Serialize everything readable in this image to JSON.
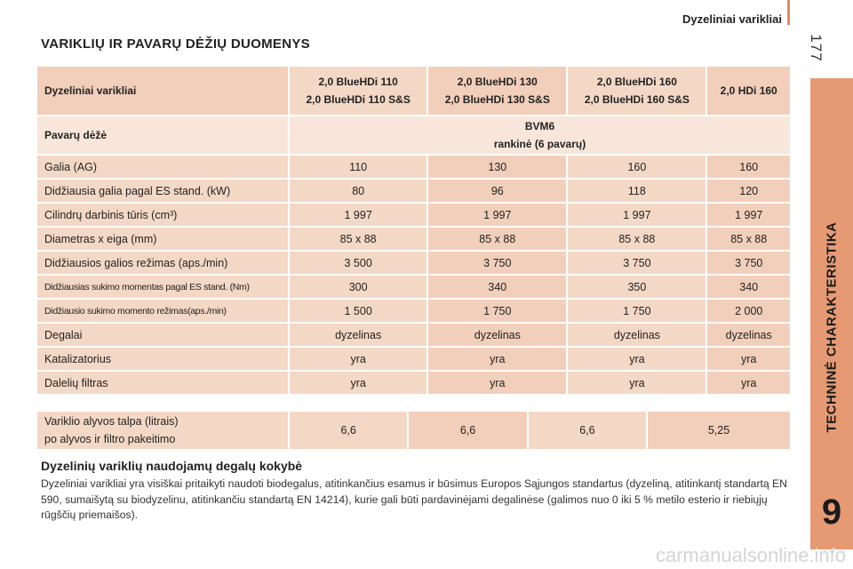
{
  "header": {
    "title": "Dyzeliniai varikliai",
    "page_number": "177"
  },
  "side_tab": {
    "label": "TECHNINĖ CHARAKTERISTIKA",
    "chapter": "9"
  },
  "section_title": "VARIKLIŲ IR PAVARŲ DĖŽIŲ DUOMENYS",
  "table": {
    "head_label": "Dyzeliniai varikliai",
    "engines": [
      {
        "line1": "2,0 BlueHDi 110",
        "line2": "2,0 BlueHDi 110 S&S"
      },
      {
        "line1": "2,0 BlueHDi 130",
        "line2": "2,0 BlueHDi 130 S&S"
      },
      {
        "line1": "2,0 BlueHDi 160",
        "line2": "2,0 BlueHDi 160 S&S"
      },
      {
        "line1": "2,0 HDi 160",
        "line2": ""
      }
    ],
    "gearbox_label": "Pavarų dėžė",
    "gearbox_line1": "BVM6",
    "gearbox_line2": "rankinė (6 pavarų)",
    "rows": [
      {
        "label": "Galia (AG)",
        "values": [
          "110",
          "130",
          "160",
          "160"
        ]
      },
      {
        "label": "Didžiausia galia pagal ES stand. (kW)",
        "values": [
          "80",
          "96",
          "118",
          "120"
        ]
      },
      {
        "label": "Cilindrų darbinis tūris (cm³)",
        "values": [
          "1 997",
          "1 997",
          "1 997",
          "1 997"
        ]
      },
      {
        "label": "Diametras x eiga (mm)",
        "values": [
          "85 x 88",
          "85 x 88",
          "85 x 88",
          "85 x 88"
        ]
      },
      {
        "label": "Didžiausios galios režimas (aps./min)",
        "values": [
          "3 500",
          "3 750",
          "3 750",
          "3 750"
        ]
      },
      {
        "label": "Didžiausias sukimo momentas pagal ES stand. (Nm)",
        "values": [
          "300",
          "340",
          "350",
          "340"
        ]
      },
      {
        "label": "Didžiausio sukimo momento režimas(aps./min)",
        "values": [
          "1 500",
          "1 750",
          "1 750",
          "2 000"
        ]
      },
      {
        "label": "Degalai",
        "values": [
          "dyzelinas",
          "dyzelinas",
          "dyzelinas",
          "dyzelinas"
        ]
      },
      {
        "label": "Katalizatorius",
        "values": [
          "yra",
          "yra",
          "yra",
          "yra"
        ]
      },
      {
        "label": "Dalelių filtras",
        "values": [
          "yra",
          "yra",
          "yra",
          "yra"
        ]
      }
    ]
  },
  "oil": {
    "label_line1": "Variklio alyvos talpa (litrais)",
    "label_line2": "po alyvos ir filtro pakeitimo",
    "values": [
      "6,6",
      "6,6",
      "6,6",
      "5,25"
    ]
  },
  "fuel_section": {
    "title": "Dyzelinių variklių naudojamų degalų kokybė",
    "text": "Dyzeliniai varikliai yra visiškai pritaikyti naudoti biodegalus, atitinkančius esamus ir būsimus Europos Sąjungos standartus (dyzeliną, atitinkantį standartą EN 590, sumaišytą su biodyzelinu, atitinkančiu standartą EN 14214), kurie gali būti pardavinėjami degalinėse (galimos nuo 0 iki 5 % metilo esterio ir riebiųjų rūgščių priemaišos)."
  },
  "watermark": "carmanualsonline.info",
  "colors": {
    "accent": "#e69a74",
    "cell_a": "#f4d8c6",
    "cell_b": "#f8e6da",
    "cell_c": "#f2cfbb"
  }
}
